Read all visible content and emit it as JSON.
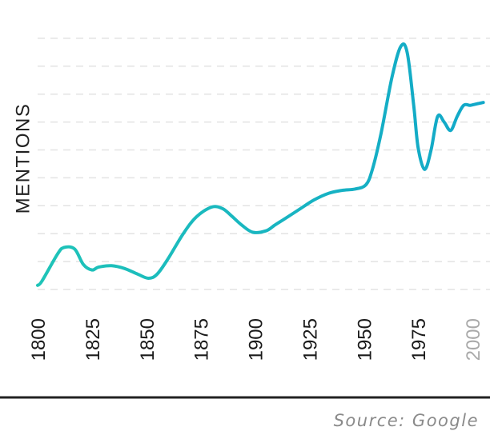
{
  "chart_data": {
    "type": "line",
    "ylabel": "MENTIONS",
    "xlabel": "",
    "title": "",
    "grid": true,
    "x_ticks": [
      "1800",
      "1825",
      "1850",
      "1875",
      "1900",
      "1925",
      "1950",
      "1975",
      "2000"
    ],
    "muted_ticks": [
      "2000"
    ],
    "xlim": [
      1795,
      2005
    ],
    "ylim": [
      0,
      9.5
    ],
    "series": [
      {
        "color": "#1fc4b8",
        "color_end": "#12a8c9",
        "x": [
          1800,
          1802,
          1809,
          1812,
          1817,
          1821,
          1825,
          1828,
          1834,
          1840,
          1846,
          1851,
          1855,
          1860,
          1867,
          1873,
          1880,
          1885,
          1889,
          1894,
          1899,
          1905,
          1909,
          1913,
          1920,
          1927,
          1934,
          1940,
          1946,
          1951,
          1954,
          1958,
          1963,
          1967,
          1970,
          1973,
          1975,
          1978,
          1981,
          1984,
          1987,
          1990,
          1993,
          1996,
          1999,
          2002,
          2005
        ],
        "values": [
          0.15,
          0.3,
          1.25,
          1.5,
          1.45,
          0.9,
          0.7,
          0.8,
          0.85,
          0.75,
          0.55,
          0.4,
          0.55,
          1.1,
          2.0,
          2.6,
          2.95,
          2.9,
          2.65,
          2.3,
          2.05,
          2.1,
          2.3,
          2.5,
          2.85,
          3.2,
          3.45,
          3.55,
          3.6,
          3.75,
          4.3,
          5.6,
          7.6,
          8.7,
          8.5,
          6.6,
          5.1,
          4.3,
          5.0,
          6.2,
          6.0,
          5.7,
          6.2,
          6.6,
          6.6,
          6.65,
          6.7
        ]
      }
    ]
  },
  "source": "Source: Google"
}
